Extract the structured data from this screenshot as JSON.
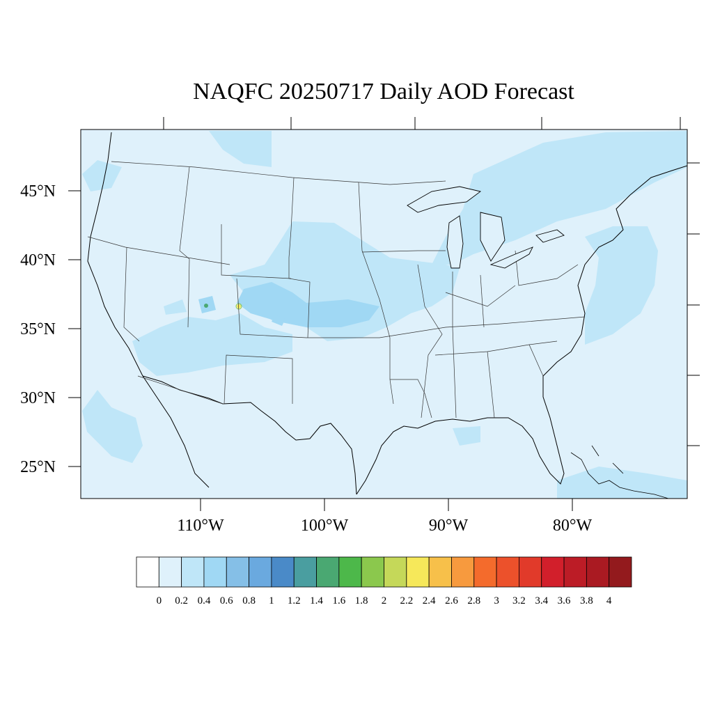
{
  "title": "NAQFC 20250717 Daily AOD Forecast",
  "map": {
    "lat_labels": [
      "45°N",
      "40°N",
      "35°N",
      "30°N",
      "25°N"
    ],
    "lon_labels": [
      "110°W",
      "100°W",
      "90°W",
      "80°W"
    ],
    "background_color": "#dff1fb"
  },
  "colorbar": {
    "labels": [
      "0",
      "0.2",
      "0.4",
      "0.6",
      "0.8",
      "1",
      "1.2",
      "1.4",
      "1.6",
      "1.8",
      "2",
      "2.2",
      "2.4",
      "2.6",
      "2.8",
      "3",
      "3.2",
      "3.4",
      "3.6",
      "3.8",
      "4"
    ],
    "colors": [
      "#ffffff",
      "#dff1fb",
      "#bfe6f8",
      "#a0d8f4",
      "#85bfe7",
      "#6aa9df",
      "#4a8ac8",
      "#4a9ea0",
      "#4aa872",
      "#4db84a",
      "#8bc84d",
      "#c5d859",
      "#f6e85a",
      "#f7c04a",
      "#f79a3e",
      "#f46b2c",
      "#ec512b",
      "#e13a2a",
      "#d21f2b",
      "#bc1c26",
      "#aa1a22",
      "#931a1d"
    ]
  }
}
